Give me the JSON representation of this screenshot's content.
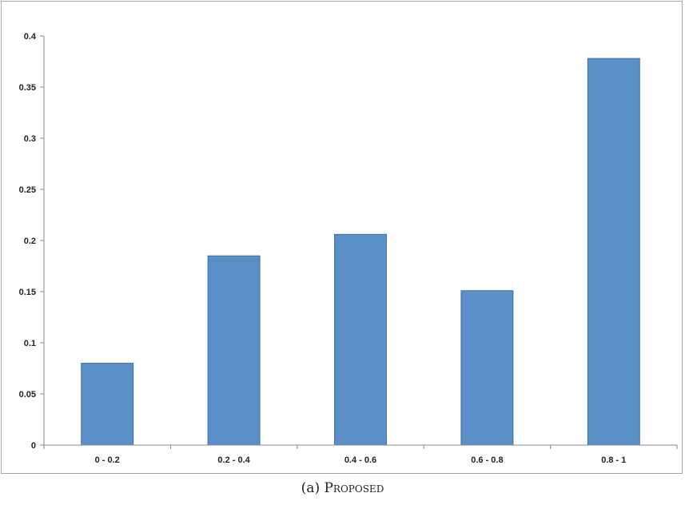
{
  "chart_data": {
    "type": "bar",
    "categories": [
      "0 - 0.2",
      "0.2 - 0.4",
      "0.4 - 0.6",
      "0.6 - 0.8",
      "0.8 - 1"
    ],
    "values": [
      0.08,
      0.185,
      0.206,
      0.151,
      0.378
    ],
    "title": "",
    "xlabel": "",
    "ylabel": "",
    "ylim": [
      0,
      0.4
    ],
    "yticks": [
      "0",
      "0.05",
      "0.1",
      "0.15",
      "0.2",
      "0.25",
      "0.3",
      "0.35",
      "0.4"
    ],
    "grid": false,
    "legend": "none",
    "bar_color": "#5b8fc7",
    "bar_edge_color": "#3f6f9f"
  },
  "caption": {
    "prefix": "(a)",
    "label": "Proposed"
  }
}
